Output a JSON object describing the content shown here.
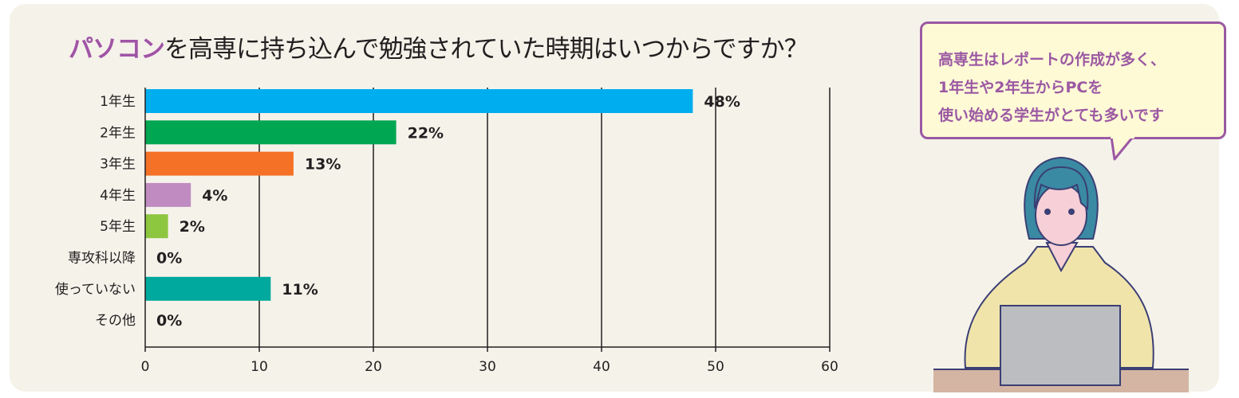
{
  "title": {
    "highlight": "パソコン",
    "rest": "を高専に持ち込んで勉強されていた時期はいつからですか？"
  },
  "bubble": {
    "lines": [
      "高専生はレポートの作成が多く、",
      "1年生や2年生からPCを",
      "使い始める学生がとても多いです"
    ]
  },
  "chart_data": {
    "type": "bar",
    "orientation": "horizontal",
    "title": "パソコンを高専に持ち込んで勉強されていた時期はいつからですか？",
    "categories": [
      "1年生",
      "2年生",
      "3年生",
      "4年生",
      "5年生",
      "専攻科以降",
      "使っていない",
      "その他"
    ],
    "values": [
      48,
      22,
      13,
      4,
      2,
      0,
      11,
      0
    ],
    "data_labels": [
      "48%",
      "22%",
      "13%",
      "4%",
      "2%",
      "0%",
      "11%",
      "0%"
    ],
    "colors": [
      "#00aeef",
      "#00a651",
      "#f47126",
      "#bf8bc0",
      "#8dc63f",
      "#cccccc",
      "#00a99d",
      "#cccccc"
    ],
    "xlim": [
      0,
      60
    ],
    "xticks": [
      0,
      10,
      20,
      30,
      40,
      50,
      60
    ],
    "grid": true
  }
}
